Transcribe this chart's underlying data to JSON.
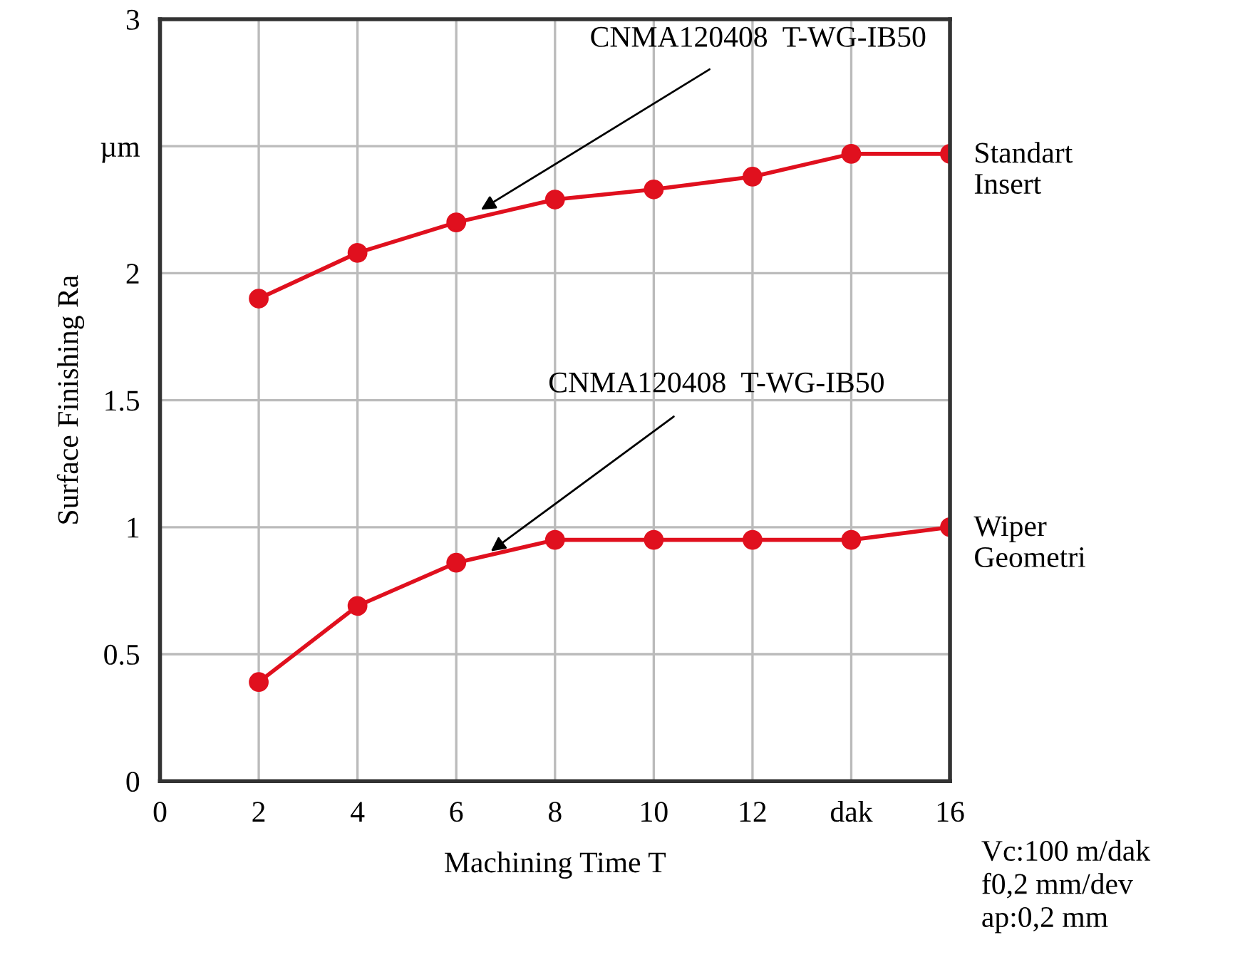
{
  "chart_data": {
    "type": "line",
    "xlabel": "Machining Time T",
    "ylabel": "Surface Finishing Ra",
    "x": [
      2,
      4,
      6,
      8,
      10,
      12,
      14,
      16
    ],
    "series": [
      {
        "name": "Standart Insert",
        "color": "#e0101e",
        "values": [
          1.9,
          2.08,
          2.2,
          2.29,
          2.33,
          2.38,
          2.47,
          2.47
        ]
      },
      {
        "name": "Wiper Geometri",
        "color": "#e0101e",
        "values": [
          0.39,
          0.69,
          0.86,
          0.95,
          0.95,
          0.95,
          0.95,
          1.0
        ]
      }
    ],
    "xlim": [
      0,
      16
    ],
    "xticks": [
      0,
      2,
      4,
      6,
      8,
      10,
      12,
      {
        "value": 14,
        "label": "dak"
      },
      16
    ],
    "ylim": [
      0,
      3
    ],
    "yticks": [
      0,
      0.5,
      1,
      1.5,
      2,
      {
        "value": 2.5,
        "label": "µm"
      },
      3
    ],
    "annotations": [
      {
        "text": "CNMA120408  T-WG-IB50",
        "x": 6.5,
        "y": 2.25
      },
      {
        "text": "CNMA120408  T-WG-IB50",
        "x": 6.7,
        "y": 0.905
      },
      "Vc:100 m/dak\nf0,2 mm/dev\nap:0,2 mm"
    ],
    "grid": true,
    "legend": false,
    "marker": "circle",
    "line_style": "solid"
  }
}
